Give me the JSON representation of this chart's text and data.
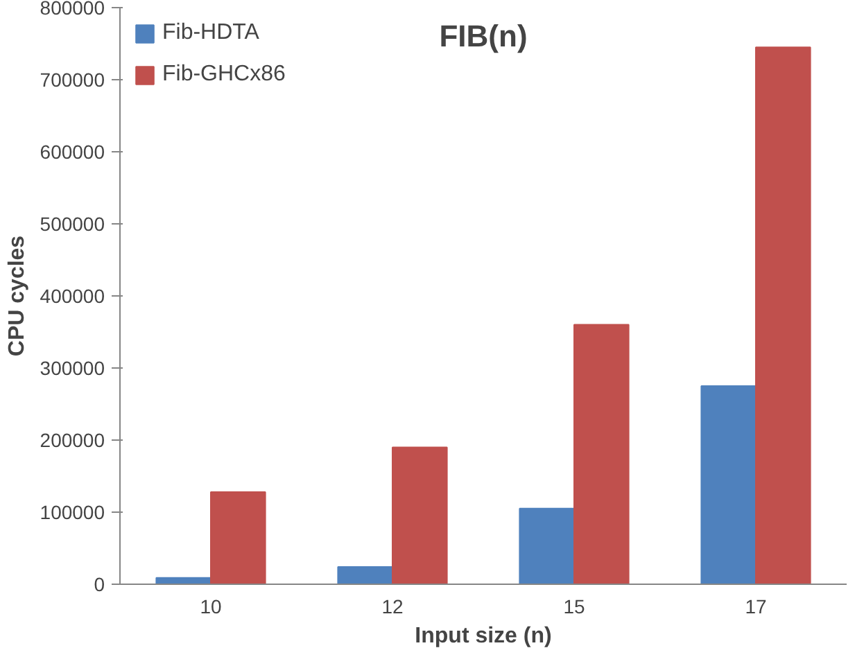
{
  "chart_data": {
    "type": "bar",
    "title": "FIB(n)",
    "xlabel": "Input size (n)",
    "ylabel": "CPU cycles",
    "categories": [
      "10",
      "12",
      "15",
      "17"
    ],
    "series": [
      {
        "name": "Fib-HDTA",
        "color": "#4f81bd",
        "values": [
          9000,
          24000,
          105000,
          275000
        ]
      },
      {
        "name": "Fib-GHCx86",
        "color": "#c0504d",
        "values": [
          128000,
          190000,
          360000,
          745000
        ]
      }
    ],
    "ylim": [
      0,
      800000
    ],
    "yticks": [
      0,
      100000,
      200000,
      300000,
      400000,
      500000,
      600000,
      700000,
      800000
    ],
    "grid": false,
    "legend": "top left"
  }
}
